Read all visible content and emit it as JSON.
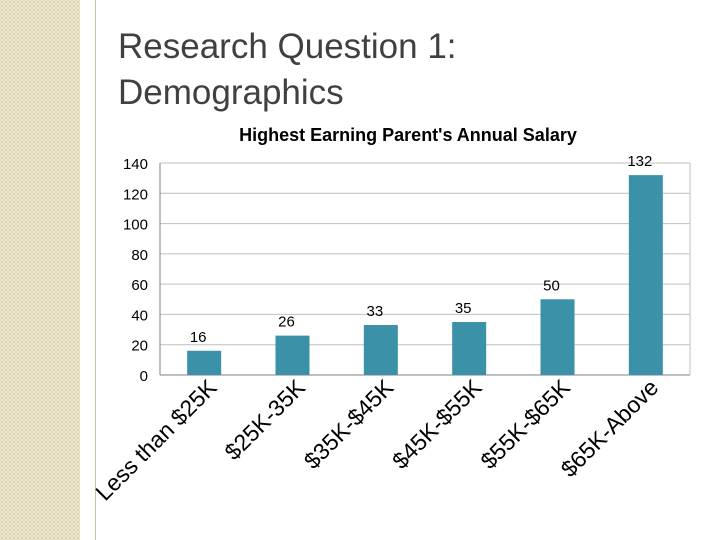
{
  "slide": {
    "title_line1": "Research Question 1:",
    "title_line2": "Demographics"
  },
  "chart_data": {
    "type": "bar",
    "title": "Highest Earning Parent's Annual Salary",
    "categories": [
      "Less than $25K",
      "$25K-35K",
      "$35K-$45K",
      "$45K-$55K",
      "$55K-$65K",
      "$65K-Above"
    ],
    "values": [
      16,
      26,
      33,
      35,
      50,
      132
    ],
    "xlabel": "",
    "ylabel": "",
    "ylim": [
      0,
      140
    ],
    "yticks": [
      0,
      20,
      40,
      60,
      80,
      100,
      120,
      140
    ],
    "grid": true,
    "legend": "none",
    "bar_color": "#3a91a8"
  }
}
